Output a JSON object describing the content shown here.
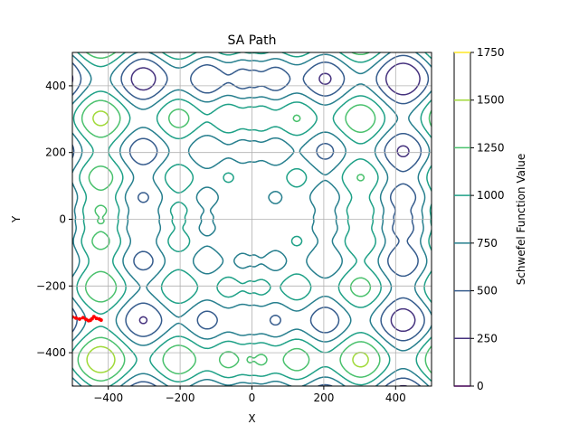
{
  "chart_data": {
    "type": "contour",
    "title": "SA Path",
    "xlabel": "X",
    "ylabel": "Y",
    "xlim": [
      -500,
      500
    ],
    "ylim": [
      -500,
      500
    ],
    "xticks": [
      -400,
      -200,
      0,
      200,
      400
    ],
    "yticks": [
      -400,
      -200,
      0,
      200,
      400
    ],
    "xtick_labels": [
      "−400",
      "−200",
      "0",
      "200",
      "400"
    ],
    "ytick_labels": [
      "−400",
      "−200",
      "0",
      "200",
      "400"
    ],
    "grid": true,
    "function": "schwefel",
    "contour_levels": [
      0,
      250,
      500,
      750,
      1000,
      1250,
      1500,
      1750
    ],
    "colorbar": {
      "label": "Schwefel Function Value",
      "ticks": [
        0,
        250,
        500,
        750,
        1000,
        1250,
        1500,
        1750
      ],
      "tick_labels": [
        "0",
        "250",
        "500",
        "750",
        "1000",
        "1250",
        "1500",
        "1750"
      ],
      "colors": [
        "#440154",
        "#46327e",
        "#365c8d",
        "#277f8e",
        "#1fa187",
        "#4ac16d",
        "#a0da39",
        "#fde725"
      ]
    },
    "series": [
      {
        "type": "path",
        "color": "#ff0000",
        "x": [
          -500,
          -490,
          -480,
          -470,
          -462,
          -455,
          -450,
          -445,
          -440,
          -433,
          -425,
          -420
        ],
        "y": [
          -293,
          -296,
          -299,
          -295,
          -300,
          -304,
          -303,
          -298,
          -292,
          -297,
          -299,
          -302
        ]
      }
    ]
  }
}
